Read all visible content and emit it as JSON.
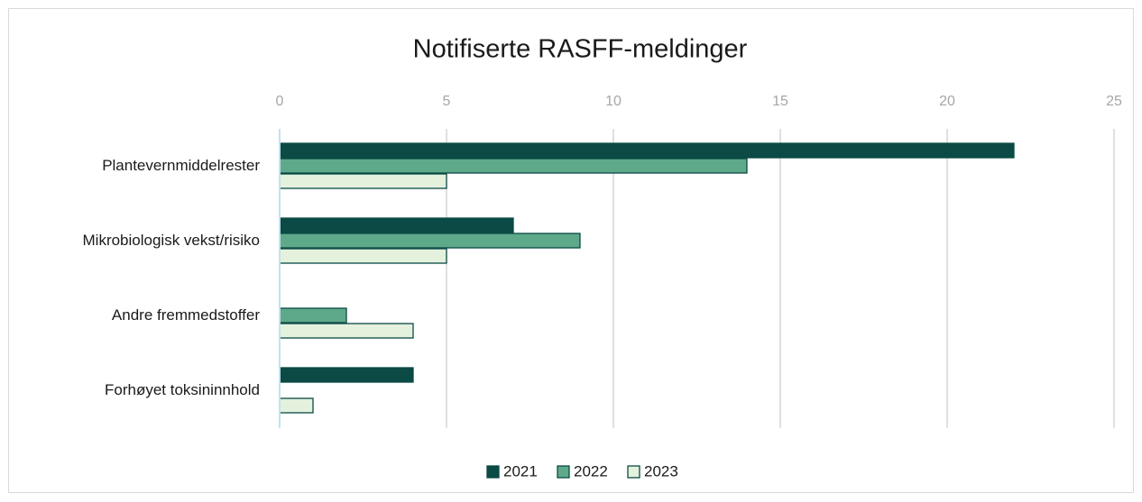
{
  "chart_data": {
    "type": "barh",
    "title": "Notifiserte RASFF-meldinger",
    "categories": [
      "Plantevernmiddelrester",
      "Mikrobiologisk vekst/risiko",
      "Andre fremmedstoffer",
      "Forhøyet toksininnhold"
    ],
    "series": [
      {
        "name": "2021",
        "color": "#0b4a45",
        "values": [
          22,
          7,
          0,
          4
        ]
      },
      {
        "name": "2022",
        "color": "#5fa98b",
        "values": [
          14,
          9,
          2,
          0
        ]
      },
      {
        "name": "2023",
        "color": "#e3f1dd",
        "values": [
          5,
          5,
          4,
          1
        ]
      }
    ],
    "xlim": [
      0,
      25
    ],
    "xticks": [
      0,
      5,
      10,
      15,
      20,
      25
    ],
    "grid": true,
    "legend": "bottom"
  }
}
